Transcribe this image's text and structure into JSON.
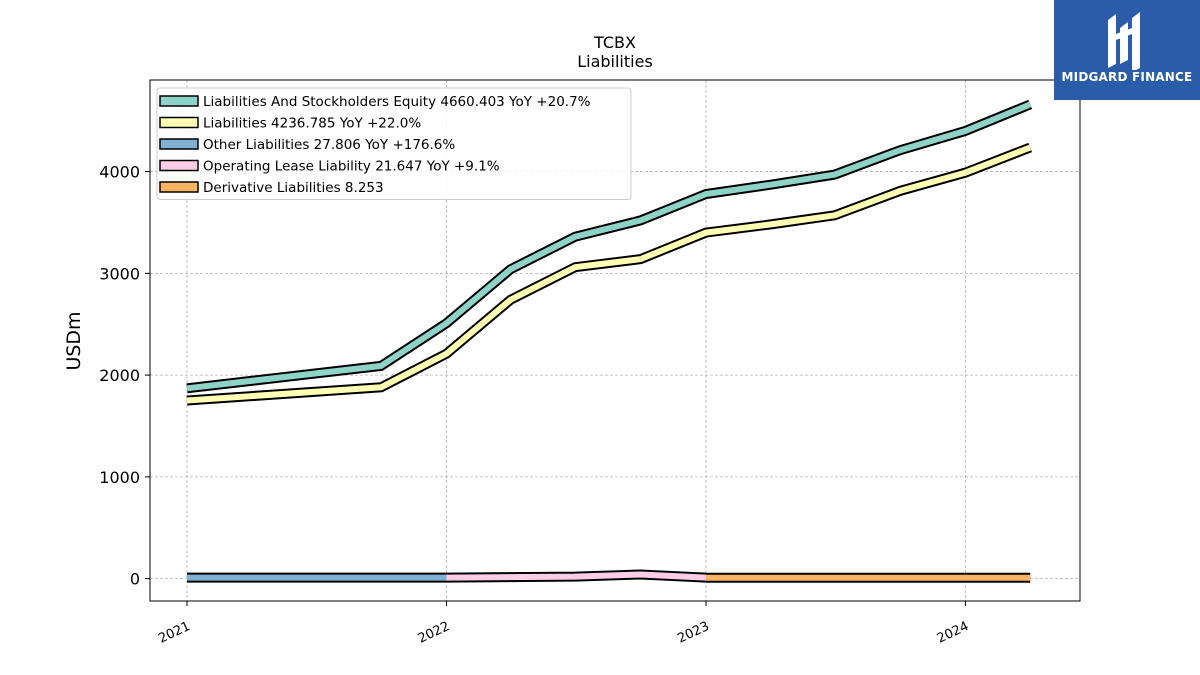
{
  "brand": {
    "name": "MIDGARD FINANCE",
    "logo_icon": "midgard-m-logo-icon",
    "background": "#2a5caa"
  },
  "chart_data": {
    "type": "area",
    "title": "TCBX",
    "subtitle": "Liabilities",
    "xlabel": "",
    "ylabel": "USDm",
    "x_ticks": [
      "2021",
      "2022",
      "2023",
      "2024"
    ],
    "y_ticks": [
      0,
      1000,
      2000,
      3000,
      4000
    ],
    "ylim": [
      -220,
      4900
    ],
    "xlim": [
      "2020-11-10",
      "2024-06-10"
    ],
    "grid": true,
    "legend_position": "top-left",
    "series": [
      {
        "name": "Liabilities And Stockholders Equity",
        "legend": "Liabilities And Stockholders Equity  4660.403 YoY +20.7%",
        "color": "#8dd3c7",
        "x": [
          "2021-01-01",
          "2021-10-01",
          "2022-01-01",
          "2022-04-01",
          "2022-07-01",
          "2022-10-01",
          "2023-01-01",
          "2023-04-01",
          "2023-07-01",
          "2023-10-01",
          "2024-01-01",
          "2024-04-01"
        ],
        "y": [
          1870,
          2090,
          2510,
          3040,
          3360,
          3520,
          3780,
          3870,
          3970,
          4210,
          4400,
          4660
        ]
      },
      {
        "name": "Liabilities",
        "legend": "Liabilities  4236.785 YoY +22.0%",
        "color": "#ffffb3",
        "x": [
          "2021-01-01",
          "2021-10-01",
          "2022-01-01",
          "2022-04-01",
          "2022-07-01",
          "2022-10-01",
          "2023-01-01",
          "2023-04-01",
          "2023-07-01",
          "2023-10-01",
          "2024-01-01",
          "2024-04-01"
        ],
        "y": [
          1750,
          1880,
          2210,
          2740,
          3060,
          3140,
          3400,
          3480,
          3570,
          3810,
          3990,
          4237
        ]
      },
      {
        "name": "Other Liabilities",
        "legend": "Other Liabilities  27.806 YoY +176.6%",
        "color": "#80b1d3",
        "x": [
          "2021-01-01",
          "2021-10-01",
          "2022-01-01"
        ],
        "y": [
          10,
          10,
          10
        ]
      },
      {
        "name": "Operating Lease Liability",
        "legend": "Operating Lease Liability  21.647 YoY +9.1%",
        "color": "#fccde5",
        "x": [
          "2022-01-01",
          "2022-07-01",
          "2022-10-01",
          "2023-01-01"
        ],
        "y": [
          10,
          20,
          40,
          10
        ]
      },
      {
        "name": "Derivative Liabilities",
        "legend": "Derivative Liabilities  8.253",
        "color": "#fdb462",
        "x": [
          "2023-01-01",
          "2024-04-01"
        ],
        "y": [
          8.253,
          8.253
        ]
      }
    ]
  }
}
